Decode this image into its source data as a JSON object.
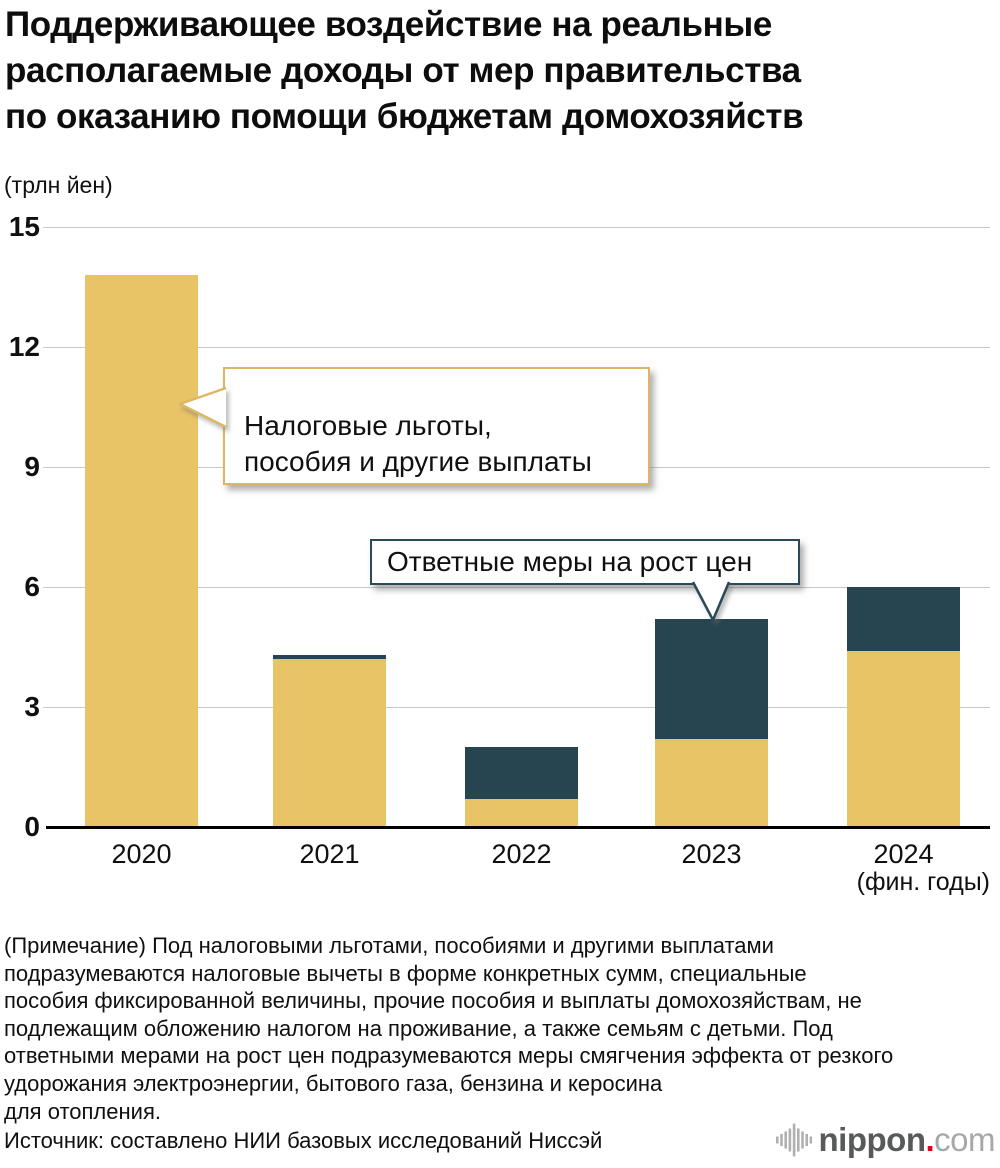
{
  "title": "Поддерживающее воздействие на реальные\nрасполагаемые доходы от мер правительства\nпо оказанию помощи бюджетам домохозяйств",
  "unit_label": "(трлн йен)",
  "chart_data": {
    "type": "bar",
    "stacked": true,
    "title": "Поддерживающее воздействие на реальные располагаемые доходы от мер правительства по оказанию помощи бюджетам домохозяйств",
    "ylabel": "(трлн йен)",
    "categories": [
      "2020",
      "2021",
      "2022",
      "2023",
      "2024"
    ],
    "x_axis_note": "(фин. годы)",
    "ylim": [
      0,
      15
    ],
    "yticks": [
      0,
      3,
      6,
      9,
      12,
      15
    ],
    "grid": true,
    "legend_position": "callouts-on-plot",
    "series": [
      {
        "name": "Налоговые льготы, пособия и другие выплаты",
        "color": "#e8c467",
        "values": [
          13.8,
          4.2,
          0.7,
          2.2,
          4.4
        ]
      },
      {
        "name": "Ответные меры на рост цен",
        "color": "#274551",
        "values": [
          0,
          0.1,
          1.3,
          3.0,
          1.6
        ]
      }
    ]
  },
  "callouts": [
    {
      "text": "Налоговые льготы,\nпособия и другие выплаты",
      "border_color": "#dcb763",
      "points_to": "2020"
    },
    {
      "text": "Ответные меры на рост цен",
      "border_color": "#2a4a58",
      "points_to": "2023"
    }
  ],
  "note": "(Примечание) Под налоговыми льготами, пособиями и другими выплатами\nподразумеваются налоговые вычеты в форме конкретных сумм, специальные\nпособия фиксированной величины, прочие пособия и выплаты домохозяйствам, не\nподлежащим обложению налогом на проживание, а также семьям с детьми. Под\nответными мерами на рост цен подразумеваются меры смягчения эффекта от резкого\nудорожания электроэнергии, бытового газа, бензина и керосина\nдля отопления.",
  "source": "Источник: составлено НИИ базовых исследований Ниссэй",
  "logo": {
    "icon": "waveform-icon",
    "name_bold": "nippon",
    "dot": ".",
    "tld": "com",
    "dot_color": "#e60012",
    "grey": "#58595b",
    "light_grey": "#a7a8aa"
  }
}
